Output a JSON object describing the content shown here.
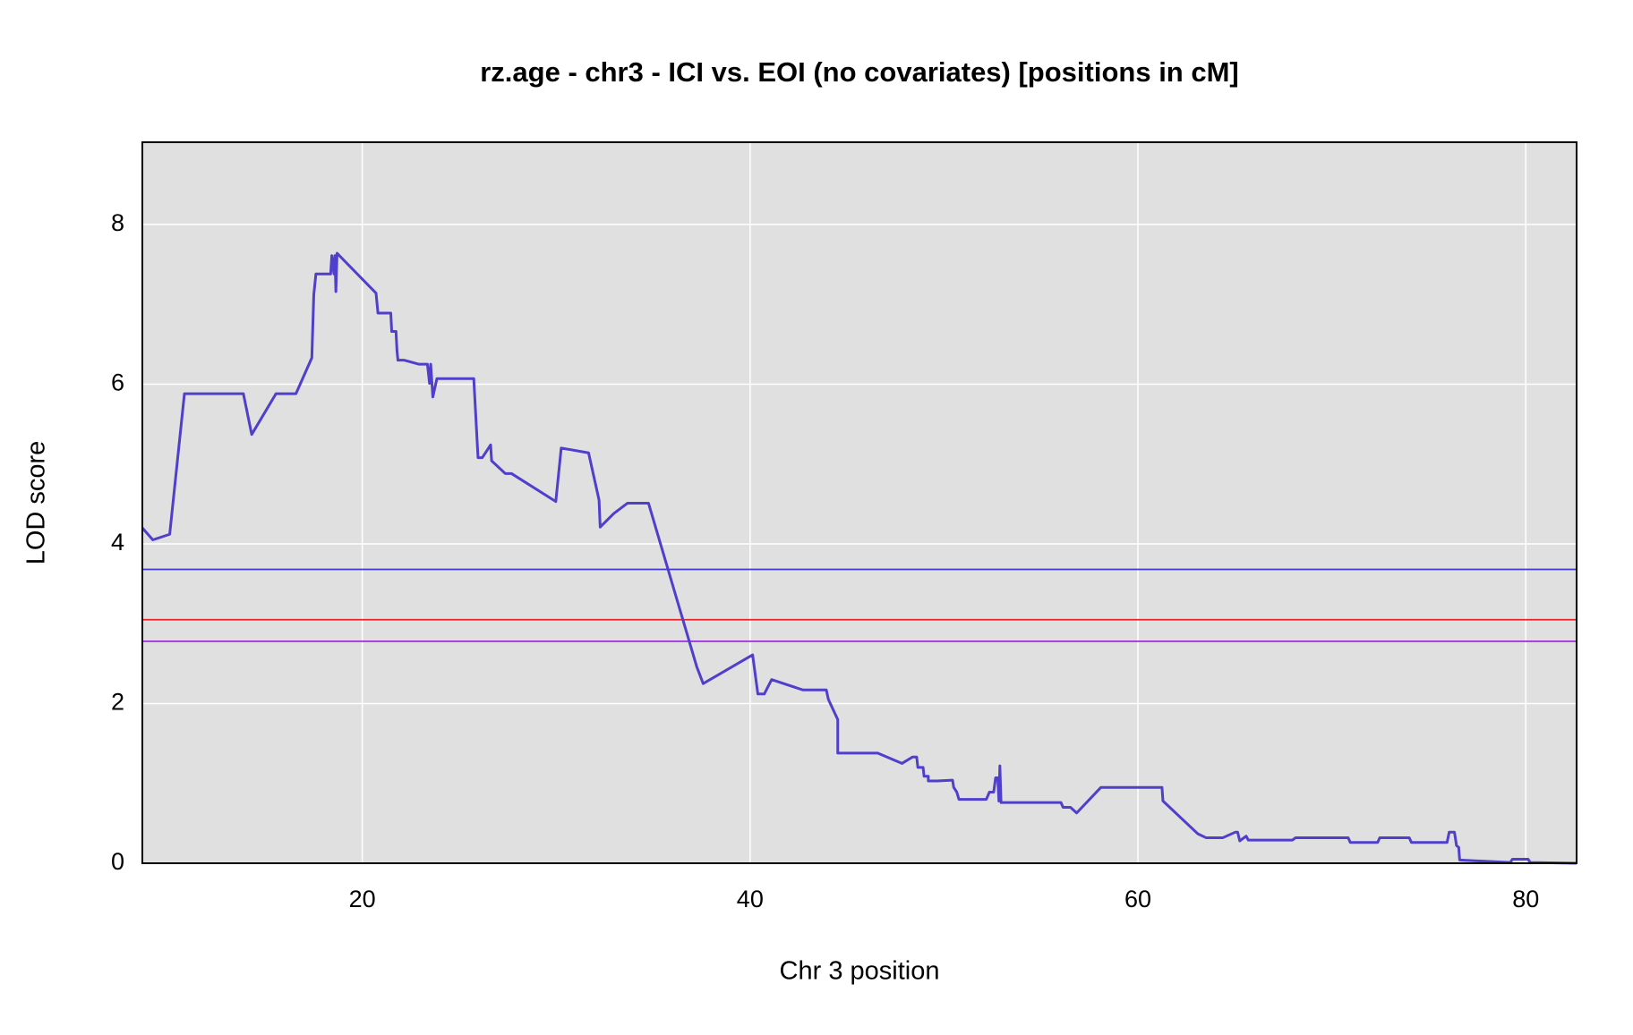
{
  "chart_data": {
    "type": "line",
    "title": "rz.age - chr3 - ICI vs. EOI (no covariates) [positions in cM]",
    "xlabel": "Chr 3 position",
    "ylabel": "LOD score",
    "xlim": [
      8.66,
      82.62
    ],
    "ylim": [
      0,
      9.03
    ],
    "xticks": [
      20,
      40,
      60,
      80
    ],
    "yticks": [
      0,
      2,
      4,
      6,
      8
    ],
    "grid": true,
    "thresholds": [
      {
        "value": 3.68,
        "color": "#3b3bd6"
      },
      {
        "value": 3.05,
        "color": "#e8242a"
      },
      {
        "value": 2.78,
        "color": "#9a2fd0"
      }
    ],
    "series": [
      {
        "color": "#4f3fca",
        "x": [
          8.66,
          9.2,
          10.07,
          10.83,
          13.87,
          14.3,
          15.55,
          16.58,
          17.4,
          17.5,
          17.61,
          18.37,
          18.43,
          18.54,
          18.59,
          18.64,
          18.7,
          20.71,
          20.81,
          21.47,
          21.52,
          21.74,
          21.79,
          21.84,
          22.17,
          22.93,
          23.36,
          23.47,
          23.53,
          23.64,
          23.85,
          25.75,
          25.97,
          26.19,
          26.62,
          26.67,
          27.38,
          27.7,
          29.98,
          30.26,
          31.67,
          32.21,
          32.27,
          32.97,
          33.68,
          34.76,
          37.25,
          37.58,
          40.13,
          40.4,
          40.73,
          41.11,
          42.73,
          43.93,
          44.04,
          44.52,
          44.52,
          46.58,
          47.83,
          48.37,
          48.59,
          48.65,
          48.92,
          48.97,
          49.19,
          49.19,
          49.63,
          50.44,
          50.5,
          50.66,
          50.77,
          52.18,
          52.34,
          52.56,
          52.66,
          52.77,
          52.83,
          52.88,
          52.94,
          56.03,
          56.14,
          56.52,
          56.84,
          58.09,
          61.24,
          61.29,
          63.08,
          63.51,
          64.38,
          65.03,
          65.14,
          65.25,
          65.58,
          65.69,
          67.97,
          68.13,
          70.84,
          70.95,
          72.36,
          72.47,
          73.99,
          74.1,
          75.94,
          76.05,
          76.32,
          76.43,
          76.54,
          76.59,
          79.2,
          79.31,
          80.12,
          80.23,
          82.62
        ],
        "values": [
          4.2,
          4.05,
          4.12,
          5.88,
          5.88,
          5.37,
          5.88,
          5.88,
          6.33,
          7.12,
          7.38,
          7.38,
          7.61,
          7.38,
          7.61,
          7.16,
          7.64,
          7.14,
          6.89,
          6.89,
          6.66,
          6.66,
          6.42,
          6.3,
          6.3,
          6.25,
          6.25,
          6.01,
          6.25,
          5.84,
          6.07,
          6.07,
          5.08,
          5.08,
          5.24,
          5.04,
          4.88,
          4.88,
          4.53,
          5.2,
          5.14,
          4.55,
          4.21,
          4.38,
          4.51,
          4.51,
          2.46,
          2.25,
          2.61,
          2.12,
          2.12,
          2.3,
          2.17,
          2.17,
          2.05,
          1.8,
          1.38,
          1.38,
          1.25,
          1.33,
          1.33,
          1.2,
          1.2,
          1.09,
          1.09,
          1.03,
          1.03,
          1.04,
          0.95,
          0.89,
          0.8,
          0.8,
          0.89,
          0.89,
          1.07,
          1.07,
          0.78,
          1.22,
          0.76,
          0.76,
          0.7,
          0.7,
          0.63,
          0.95,
          0.95,
          0.78,
          0.37,
          0.32,
          0.32,
          0.39,
          0.39,
          0.28,
          0.34,
          0.29,
          0.29,
          0.32,
          0.32,
          0.26,
          0.26,
          0.32,
          0.32,
          0.26,
          0.26,
          0.39,
          0.39,
          0.22,
          0.2,
          0.04,
          0.01,
          0.05,
          0.05,
          0.01,
          0.0
        ]
      }
    ]
  }
}
